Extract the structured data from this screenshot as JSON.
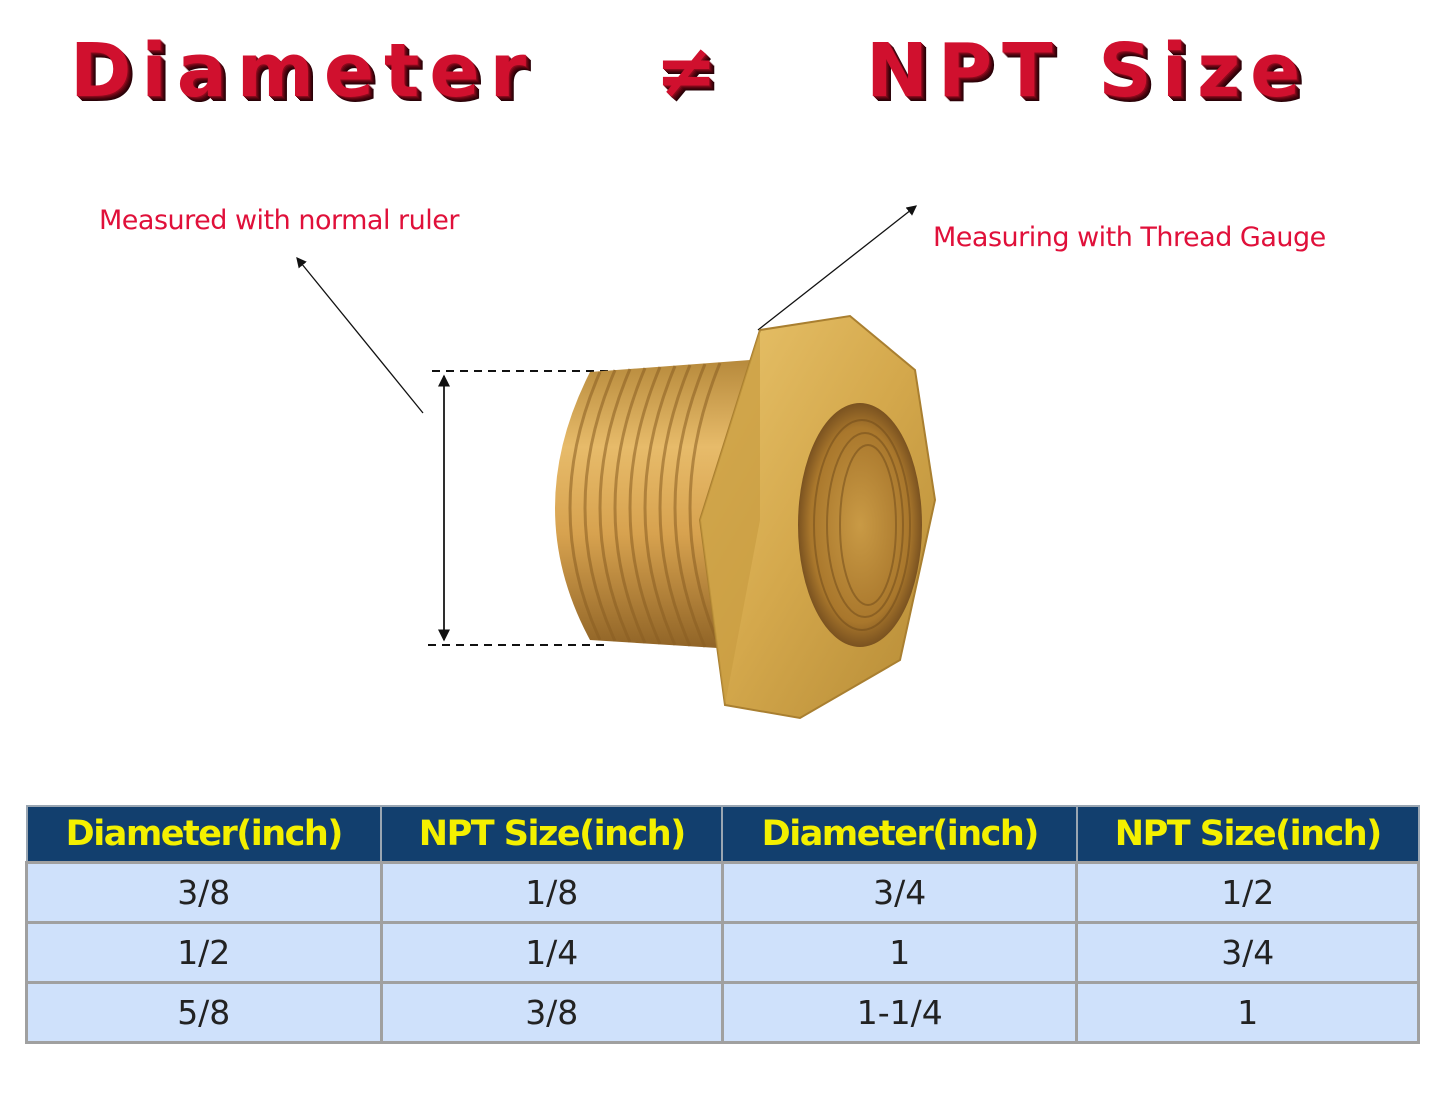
{
  "title": {
    "left": "Diameter",
    "symbol": "≠",
    "right": "NPT Size"
  },
  "annotations": {
    "ruler": "Measured with normal ruler",
    "gauge": "Measuring with Thread Gauge"
  },
  "table": {
    "headers": [
      "Diameter(inch)",
      "NPT Size(inch)",
      "Diameter(inch)",
      "NPT Size(inch)"
    ],
    "rows": [
      [
        "3/8",
        "1/8",
        "3/4",
        "1/2"
      ],
      [
        "1/2",
        "1/4",
        "1",
        "3/4"
      ],
      [
        "5/8",
        "3/8",
        "1-1/4",
        "1"
      ]
    ]
  },
  "colors": {
    "title": "#d0102e",
    "annotation": "#e0103a",
    "header_bg": "#123f6e",
    "header_text": "#f4f000",
    "cell_bg": "#cfe1fb"
  }
}
